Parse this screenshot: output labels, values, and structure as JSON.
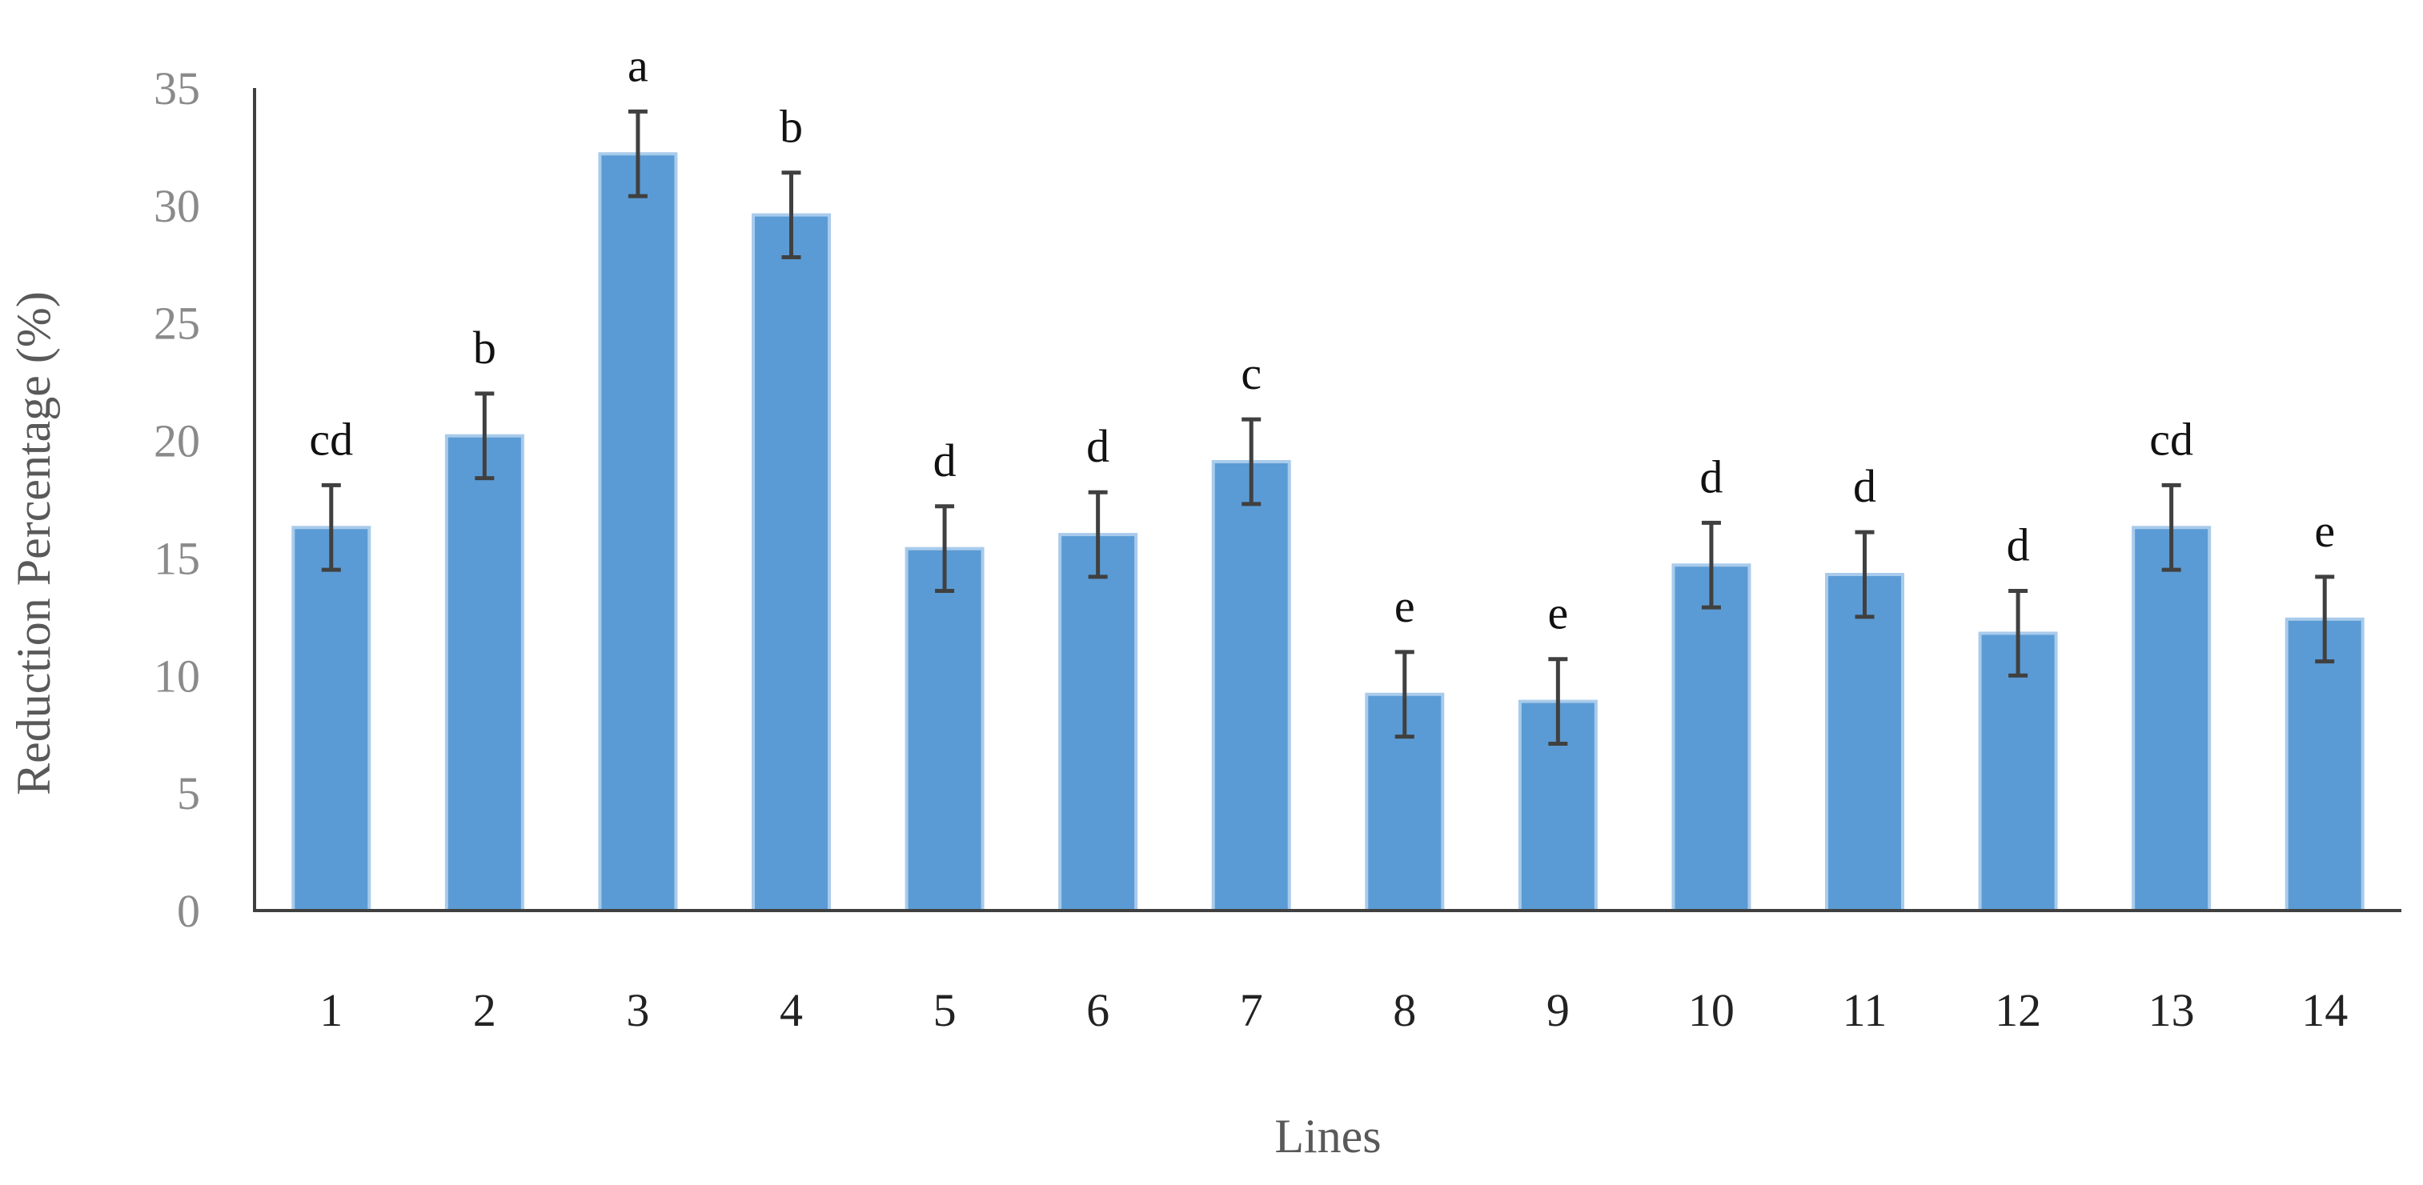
{
  "chart_data": {
    "type": "bar",
    "title": "",
    "xlabel": "Lines",
    "ylabel": "Reduction Percentage (%)",
    "ylim": [
      0,
      35
    ],
    "yticks": [
      0,
      5,
      10,
      15,
      20,
      25,
      30,
      35
    ],
    "grid": false,
    "legend": "none",
    "categories": [
      "1",
      "2",
      "3",
      "4",
      "5",
      "6",
      "7",
      "8",
      "9",
      "10",
      "11",
      "12",
      "13",
      "14"
    ],
    "values": [
      16.3,
      20.2,
      32.2,
      29.6,
      15.4,
      16.0,
      19.1,
      9.2,
      8.9,
      14.7,
      14.3,
      11.8,
      16.3,
      12.4
    ],
    "error": [
      1.8,
      1.8,
      1.8,
      1.8,
      1.8,
      1.8,
      1.8,
      1.8,
      1.8,
      1.8,
      1.8,
      1.8,
      1.8,
      1.8
    ],
    "significance_letters": [
      "cd",
      "b",
      "a",
      "b",
      "d",
      "d",
      "c",
      "e",
      "e",
      "d",
      "d",
      "d",
      "cd",
      "e"
    ],
    "colors": {
      "bar_fill": "#5b9bd5",
      "bar_edge": "#a9cbeb",
      "error_bar": "#404040",
      "axis": "#404040",
      "y_tick_text": "#8a8a8a",
      "x_tick_text": "#222222",
      "axis_title_text": "#595959",
      "letter_text": "#111111"
    }
  }
}
